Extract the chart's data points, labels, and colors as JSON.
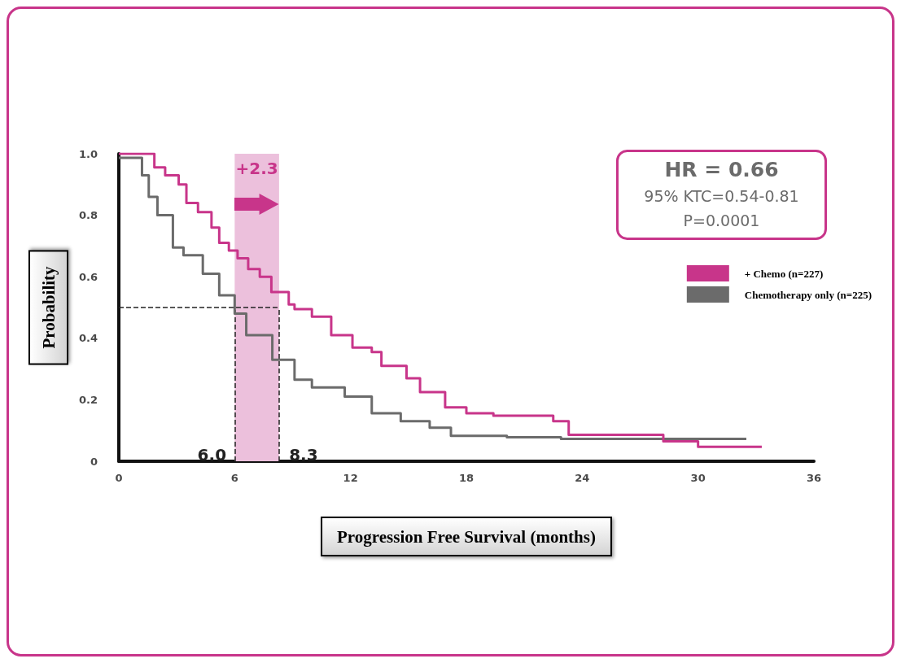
{
  "chart_data": {
    "type": "step",
    "xlabel": "Progression Free Survival (months)",
    "ylabel": "Probability",
    "xlim": [
      0,
      36
    ],
    "xticks": [
      0,
      6,
      12,
      18,
      24,
      30,
      36
    ],
    "ylim": [
      0,
      1
    ],
    "yticks": [
      0,
      0.2,
      0.4,
      0.6,
      0.8,
      {
        "value": 1,
        "label": "1.0"
      }
    ],
    "series": [
      {
        "name": "+ Chemo (n=227)",
        "color": "#c8358a",
        "x": [
          0,
          1.84,
          2.4,
          3.1,
          3.5,
          4.1,
          4.8,
          5.2,
          5.7,
          6.15,
          6.7,
          7.3,
          7.9,
          8.8,
          9.1,
          10.0,
          11.0,
          12.1,
          13.1,
          13.6,
          14.9,
          15.6,
          16.9,
          18.0,
          19.4,
          22.5,
          23.3,
          28.2,
          30.0,
          33.3
        ],
        "values": [
          1.0,
          0.956,
          0.93,
          0.9,
          0.84,
          0.81,
          0.76,
          0.71,
          0.685,
          0.66,
          0.625,
          0.6,
          0.55,
          0.51,
          0.495,
          0.47,
          0.41,
          0.37,
          0.355,
          0.31,
          0.27,
          0.225,
          0.175,
          0.156,
          0.148,
          0.13,
          0.086,
          0.065,
          0.047,
          0.047
        ]
      },
      {
        "name": "Chemotherapy only (n=225)",
        "color": "#6b6b6b",
        "x": [
          0,
          1.2,
          1.55,
          2.0,
          2.8,
          3.35,
          4.35,
          5.2,
          6.0,
          6.6,
          7.95,
          9.1,
          10.0,
          11.7,
          13.1,
          14.6,
          16.1,
          17.2,
          20.1,
          22.9,
          32.5
        ],
        "values": [
          0.987,
          0.93,
          0.86,
          0.8,
          0.695,
          0.67,
          0.61,
          0.54,
          0.48,
          0.41,
          0.33,
          0.265,
          0.24,
          0.21,
          0.156,
          0.13,
          0.109,
          0.083,
          0.078,
          0.073,
          0.073
        ]
      }
    ],
    "ref_lines": [
      {
        "axis": "y",
        "value": 0.5,
        "line_style": "dashed",
        "color": "#222222"
      },
      {
        "axis": "x",
        "value": 6.0,
        "label": "6.0",
        "line_style": "dashed",
        "color": "#222222"
      },
      {
        "axis": "x",
        "value": 8.3,
        "label": "8.3",
        "line_style": "dashed",
        "color": "#222222"
      }
    ],
    "bands": [
      {
        "axis": "x",
        "from": 6.0,
        "to": 8.3,
        "label": "+2.3",
        "color": "#ecc0dc"
      }
    ],
    "annotations": [
      "HR = 0.66",
      "95% KTC=0.54-0.81",
      "P=0.0001"
    ],
    "legend": "right",
    "grid": false,
    "marker": "none",
    "line_style": "solid"
  }
}
